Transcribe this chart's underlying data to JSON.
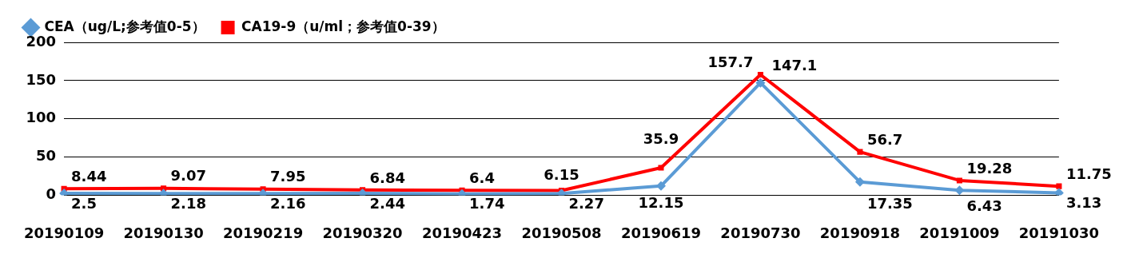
{
  "chart_data": {
    "type": "line",
    "categories": [
      "20190109",
      "20190130",
      "20190219",
      "20190320",
      "20190423",
      "20190508",
      "20190619",
      "20190730",
      "20190918",
      "20191009",
      "20191030"
    ],
    "series": [
      {
        "name": "CEA（ug/L;参考值0-5）",
        "color": "#5b9bd5",
        "marker": "diamond",
        "values": [
          2.5,
          2.18,
          2.16,
          2.44,
          1.74,
          2.27,
          12.15,
          147.1,
          17.35,
          6.43,
          3.13
        ]
      },
      {
        "name": "CA19-9（u/ml；参考值0-39）",
        "color": "#ff0000",
        "marker": "square",
        "values": [
          8.44,
          9.07,
          7.95,
          6.84,
          6.4,
          6.15,
          35.9,
          157.7,
          56.7,
          19.28,
          11.75
        ]
      }
    ],
    "ylim": [
      0,
      200
    ],
    "yticks": [
      0,
      50,
      100,
      150,
      200
    ],
    "grid": "y",
    "legend": "top left",
    "data_labels": true,
    "line_style": "solid"
  }
}
